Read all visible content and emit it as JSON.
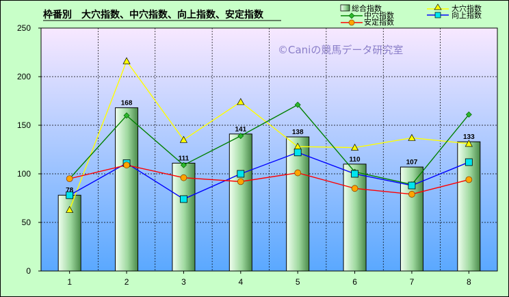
{
  "colors": {
    "background": "#c8ffc8",
    "plot_top": "#f8e8ff",
    "plot_bottom": "#5aa8ff",
    "bar_light": "#f0fff0",
    "bar_mid": "#9ed89e",
    "bar_dark": "#4a8a4a",
    "daiketsu": "#ffff00",
    "chuketsu": "#008000",
    "kojo": "#0000ff",
    "antei": "#ff0000",
    "watermark": "#8a7ec8"
  },
  "watermark": "©Caniの競馬データ研究室",
  "chart_data": {
    "type": "bar",
    "title": "枠番別　大穴指数、中穴指数、向上指数、安定指数",
    "categories": [
      "1",
      "2",
      "3",
      "4",
      "5",
      "6",
      "7",
      "8"
    ],
    "ylim": [
      0,
      250
    ],
    "yticks": [
      "0",
      "50",
      "100",
      "150",
      "200",
      "250"
    ],
    "grid": true,
    "legend_position": "top-right",
    "series": [
      {
        "name": "総合指数",
        "kind": "bar",
        "values": [
          78,
          168,
          111,
          141,
          138,
          110,
          107,
          133
        ],
        "data_labels": [
          "78",
          "168",
          "111",
          "141",
          "138",
          "110",
          "107",
          "133"
        ]
      },
      {
        "name": "大穴指数",
        "kind": "line",
        "marker": "triangle",
        "color": "#ffff00",
        "values": [
          63,
          216,
          135,
          174,
          128,
          127,
          137,
          131
        ]
      },
      {
        "name": "中穴指数",
        "kind": "line",
        "marker": "diamond",
        "color": "#008000",
        "values": [
          95,
          160,
          109,
          139,
          171,
          102,
          89,
          161
        ]
      },
      {
        "name": "向上指数",
        "kind": "line",
        "marker": "square",
        "color": "#0000ff",
        "values": [
          78,
          111,
          74,
          100,
          122,
          100,
          88,
          112
        ]
      },
      {
        "name": "安定指数",
        "kind": "line",
        "marker": "circle",
        "color": "#ff0000",
        "values": [
          95,
          109,
          96,
          92,
          101,
          85,
          79,
          94
        ]
      }
    ]
  }
}
